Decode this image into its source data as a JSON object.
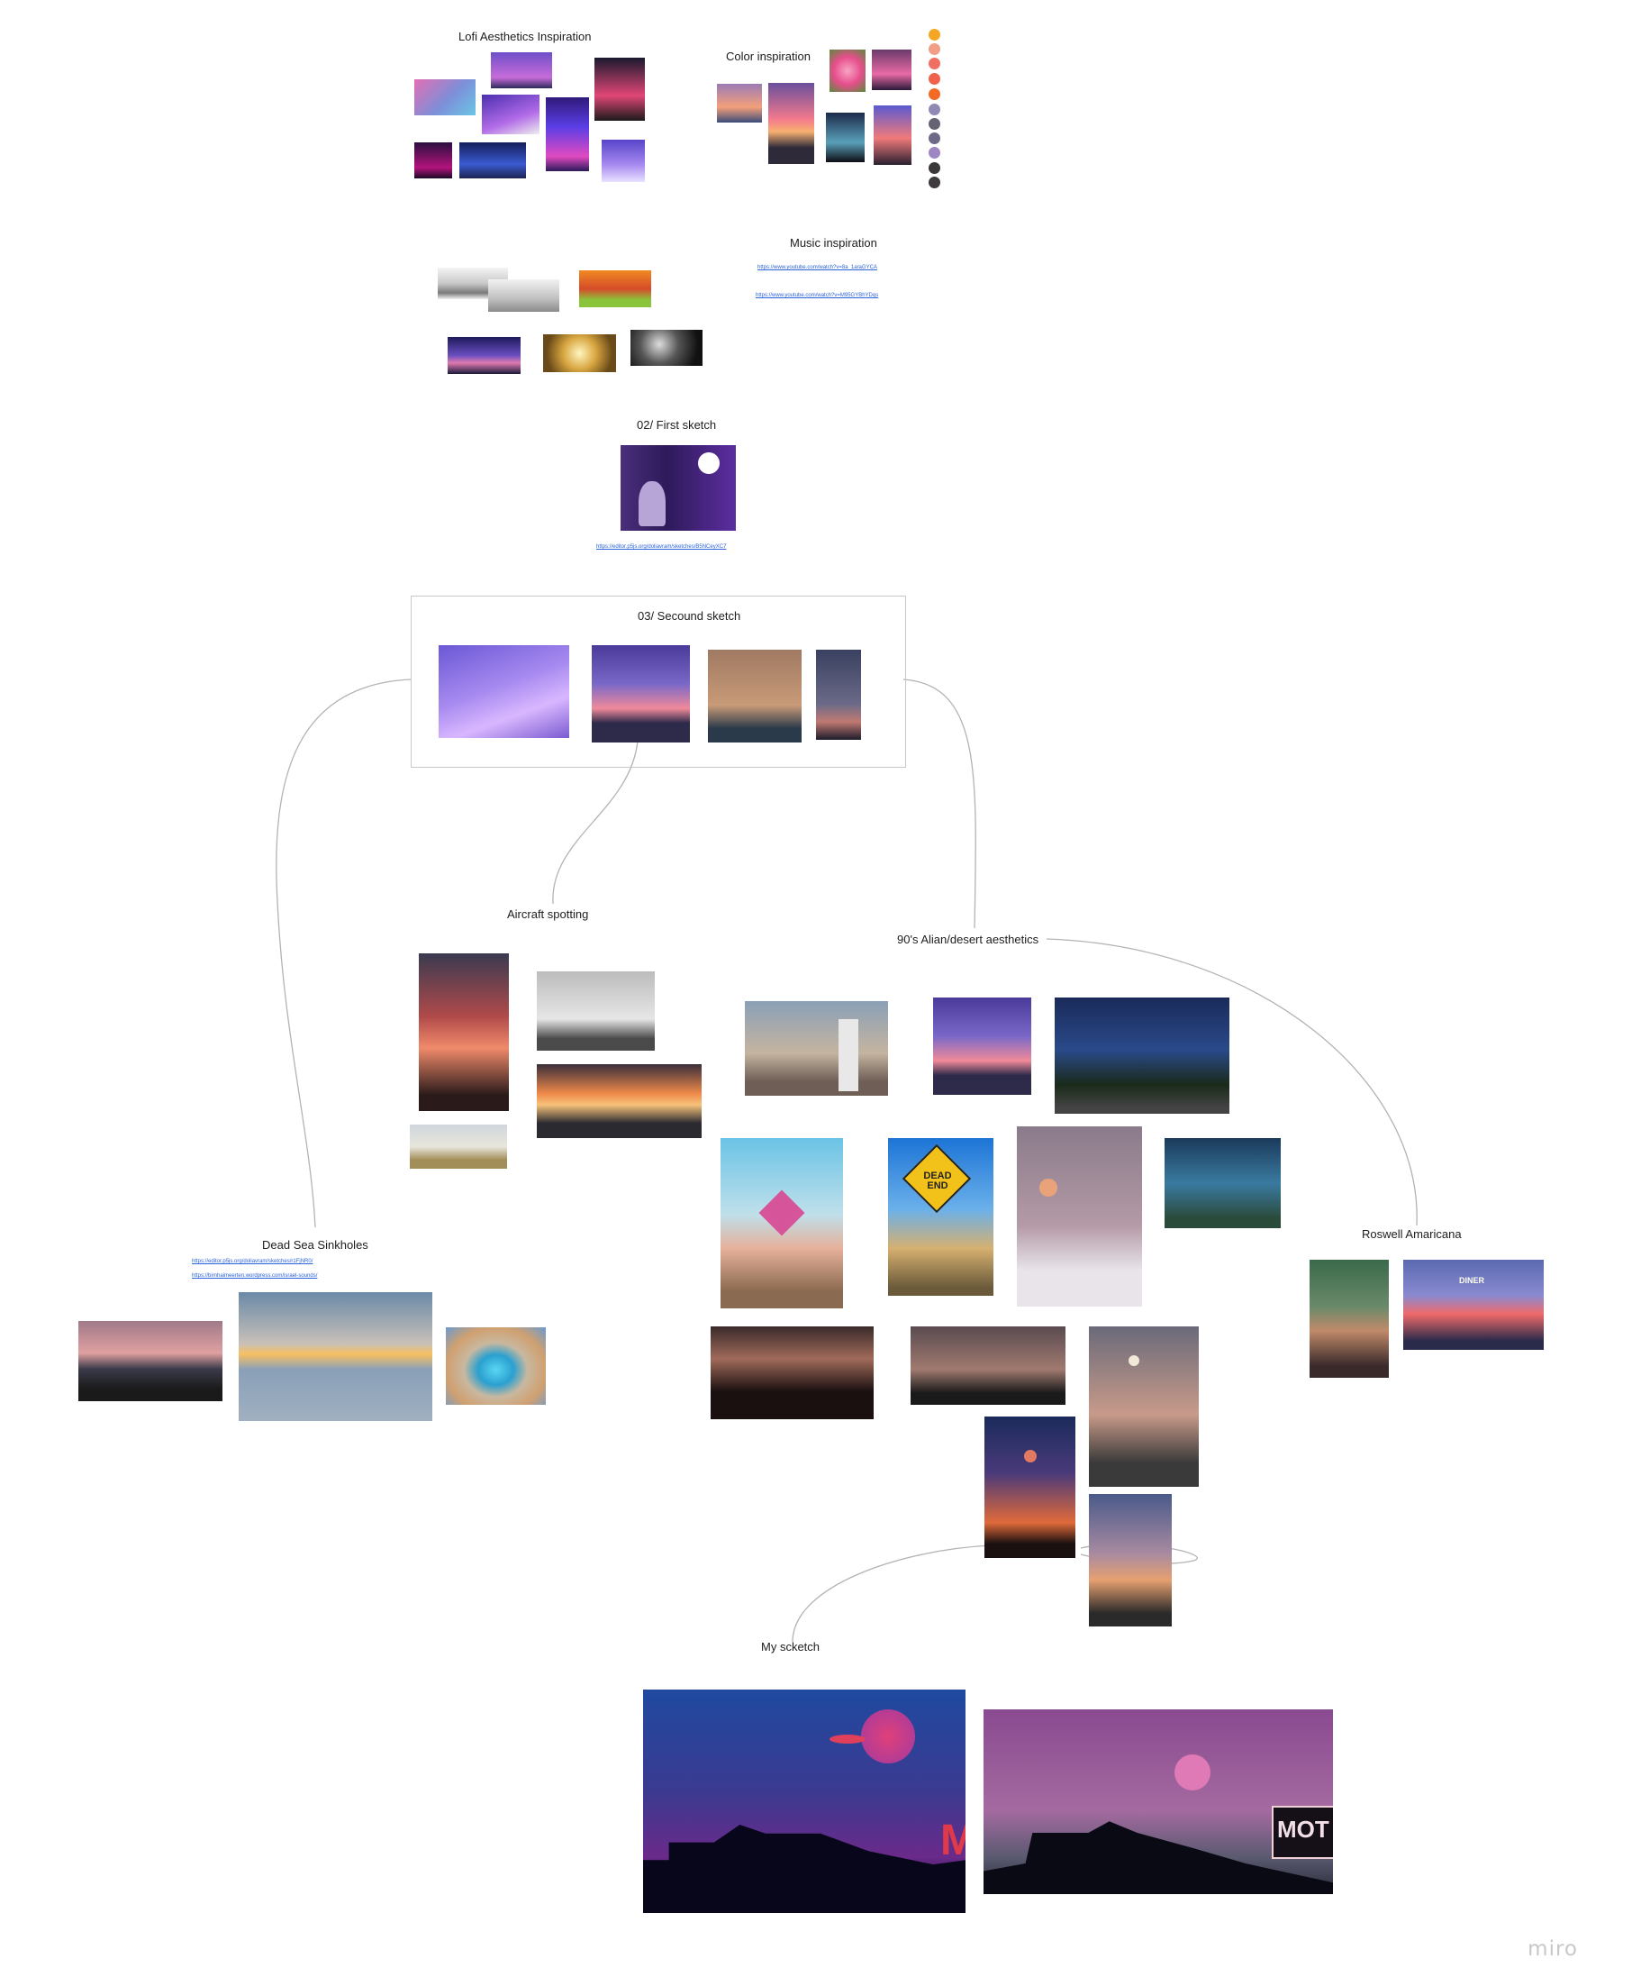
{
  "board": {
    "sections": {
      "lofi": "Lofi Aesthetics Inspiration",
      "color": "Color inspiration",
      "music": "Music inspiration",
      "first_sketch": "02/ First sketch",
      "second_sketch": "03/ Secound sketch",
      "aircraft": "Aircraft spotting",
      "desert": "90's Alian/desert aesthetics",
      "dead_sea": "Dead Sea Sinkholes",
      "roswell": "Roswell Amaricana",
      "my_sketch": "My scketch"
    },
    "links": {
      "music_1": "https://www.youtube.com/watch?v=8a_1araGYCA",
      "music_2": "https://www.youtube.com/watch?v=M95GYBhYDqs",
      "first_sketch": "https://editor.p5js.org/doliavram/sketches/B5NCeyXC7",
      "dead_sea_1": "https://editor.p5js.org/doliavram/sketches/r1FjNR0/",
      "dead_sea_2": "https://birnhaimeerten.wordpress.com/israel-sounds/"
    },
    "swatches": [
      "#f5a623",
      "#f09e86",
      "#ef7063",
      "#f0624c",
      "#f36a26",
      "#8f89b4",
      "#666273",
      "#6d6a88",
      "#9d86c2",
      "#3a3838",
      "#3e3a3d"
    ],
    "sign_text": {
      "dead_end": "DEAD END",
      "diner": "DINER",
      "motel_a": "MO",
      "motel_b": "MOT"
    },
    "logo": "miro"
  }
}
